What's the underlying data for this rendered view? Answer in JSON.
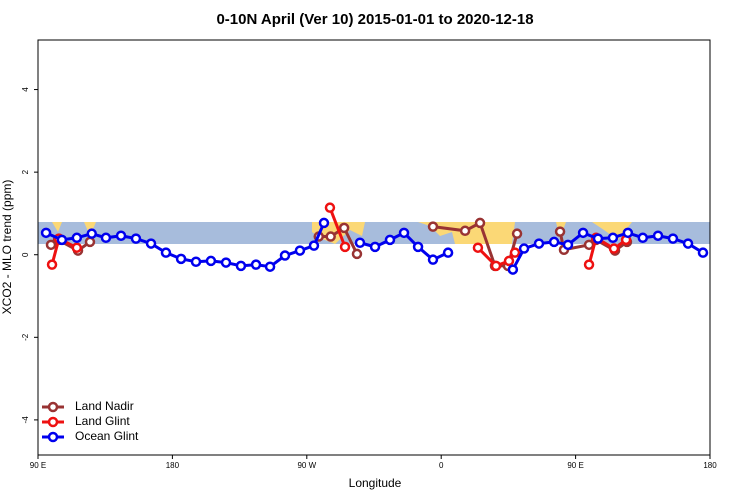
{
  "chart_data": {
    "type": "line",
    "title": "0-10N April (Ver 10)   2015-01-01 to 2020-12-18",
    "x_label": "Longitude",
    "y_label": "XCO2 - MLO trend (ppm)",
    "xlim": [
      90,
      540
    ],
    "ylim": [
      -4.85,
      5.2
    ],
    "xticks": [
      {
        "value": 90,
        "label": "90 E"
      },
      {
        "value": 180,
        "label": "180"
      },
      {
        "value": 270,
        "label": "90 W"
      },
      {
        "value": 360,
        "label": "0"
      },
      {
        "value": 450,
        "label": "90 E"
      },
      {
        "value": 540,
        "label": "180"
      }
    ],
    "yticks": [
      -4,
      -2,
      0,
      2,
      4
    ],
    "legend": "bottom-left",
    "series": [
      {
        "name": "Land Nadir",
        "color": "#993333",
        "x": [
          98.7,
          103.4,
          116.8,
          124.8,
          null,
          278,
          286,
          295,
          303.6,
          null,
          354.5,
          376,
          386,
          396,
          404.7,
          410.8,
          null,
          439.6,
          442.2,
          459,
          463.7,
          476.4,
          484.4
        ],
        "values": [
          0.24,
          0.36,
          0.1,
          0.31,
          null,
          0.44,
          0.44,
          0.65,
          0.02,
          null,
          0.68,
          0.58,
          0.77,
          -0.27,
          -0.27,
          0.51,
          null,
          0.56,
          0.12,
          0.24,
          0.36,
          0.1,
          0.31
        ]
      },
      {
        "name": "Land Glint",
        "color": "#ee1111",
        "x": [
          99.4,
          104,
          116,
          null,
          285.5,
          295.6,
          null,
          384.6,
          396.7,
          405.4,
          409.4,
          null,
          459,
          463.7,
          475.7,
          483.8
        ],
        "values": [
          -0.24,
          0.39,
          0.17,
          null,
          1.14,
          0.19,
          null,
          0.17,
          -0.27,
          -0.15,
          0.05,
          null,
          -0.24,
          0.41,
          0.15,
          0.36
        ]
      },
      {
        "name": "Ocean Glint",
        "color": "#0000ee",
        "x": [
          95.4,
          106,
          116,
          126,
          135.5,
          145.6,
          155.6,
          165.7,
          175.7,
          185.8,
          195.8,
          205.8,
          215.9,
          225.9,
          236,
          245.4,
          255.4,
          265.4,
          274.8,
          281.5,
          null,
          305.6,
          315.7,
          325.7,
          335.1,
          344.5,
          354.5,
          364.6,
          null,
          408,
          415.5,
          425.5,
          435.6,
          444.9,
          455,
          465,
          475,
          485,
          495,
          505.2,
          515.2,
          525.3,
          535.3
        ],
        "values": [
          0.53,
          0.36,
          0.41,
          0.51,
          0.41,
          0.46,
          0.39,
          0.27,
          0.05,
          -0.1,
          -0.17,
          -0.15,
          -0.19,
          -0.27,
          -0.24,
          -0.29,
          -0.02,
          0.1,
          0.22,
          0.77,
          null,
          0.29,
          0.19,
          0.36,
          0.53,
          0.19,
          -0.12,
          0.05,
          null,
          -0.36,
          0.15,
          0.27,
          0.31,
          0.24,
          0.53,
          0.39,
          0.41,
          0.53,
          0.41,
          0.46,
          0.39,
          0.27,
          0.05
        ]
      }
    ]
  }
}
